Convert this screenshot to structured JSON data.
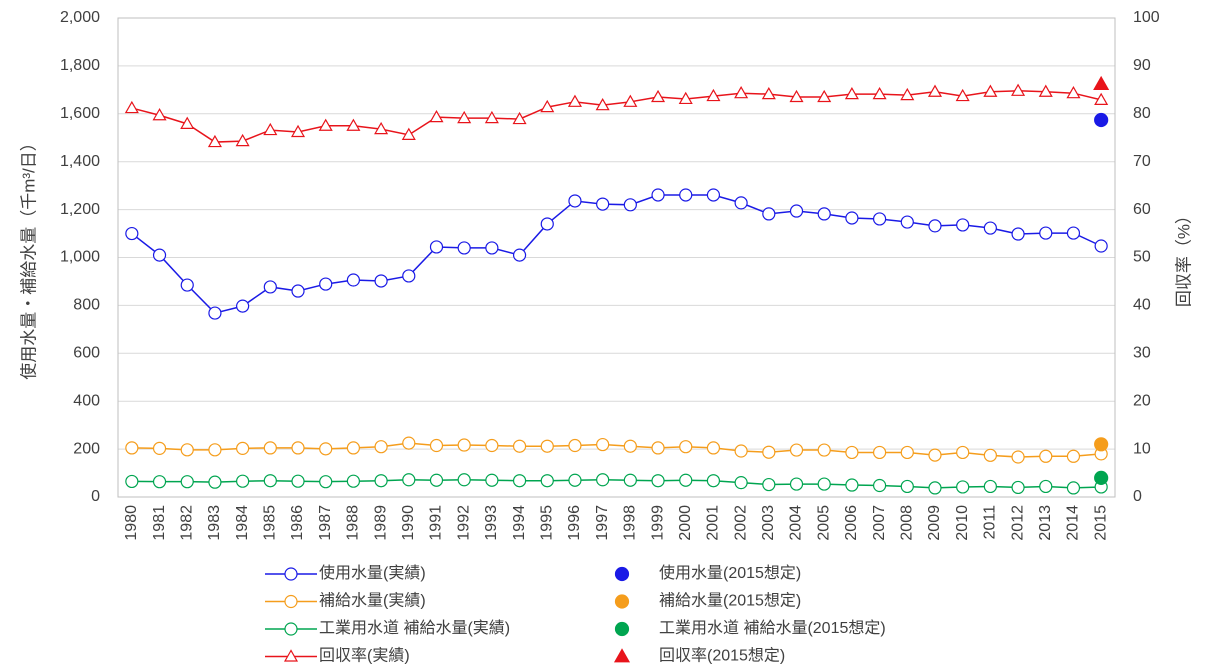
{
  "chart_data": {
    "type": "line",
    "y_label": "使用水量・補給水量（千m³/日）",
    "y2_label": "回収率（%）",
    "categories": [
      "1980",
      "1981",
      "1982",
      "1983",
      "1984",
      "1985",
      "1986",
      "1987",
      "1988",
      "1989",
      "1990",
      "1991",
      "1992",
      "1993",
      "1994",
      "1995",
      "1996",
      "1997",
      "1998",
      "1999",
      "2000",
      "2001",
      "2002",
      "2003",
      "2004",
      "2005",
      "2006",
      "2007",
      "2008",
      "2009",
      "2010",
      "2011",
      "2012",
      "2013",
      "2014",
      "2015"
    ],
    "ylim": [
      0,
      2000
    ],
    "yticks": [
      0,
      200,
      400,
      600,
      800,
      {
        "value": 1000,
        "label": "1,000"
      },
      {
        "value": 1200,
        "label": "1,200"
      },
      {
        "value": 1400,
        "label": "1,400"
      },
      {
        "value": 1600,
        "label": "1,600"
      },
      {
        "value": 1800,
        "label": "1,800"
      },
      {
        "value": 2000,
        "label": "2,000"
      }
    ],
    "y2lim": [
      0,
      100
    ],
    "y2ticks": [
      0,
      10,
      20,
      30,
      40,
      50,
      60,
      70,
      80,
      90,
      100
    ],
    "grid": true,
    "series": [
      {
        "name": "使用水量(実績)",
        "color": "#1a1ae6",
        "marker": "circle-open",
        "line": true,
        "axis": "y",
        "values": [
          1100,
          1010,
          885,
          768,
          797,
          877,
          860,
          889,
          906,
          902,
          923,
          1044,
          1040,
          1040,
          1010,
          1140,
          1236,
          1223,
          1220,
          1261,
          1261,
          1261,
          1228,
          1182,
          1194,
          1182,
          1165,
          1161,
          1148,
          1132,
          1136,
          1123,
          1098,
          1102,
          1102,
          1048
        ]
      },
      {
        "name": "使用水量(2015想定)",
        "color": "#1a1ae6",
        "marker": "circle",
        "line": false,
        "axis": "y",
        "values": [
          null,
          null,
          null,
          null,
          null,
          null,
          null,
          null,
          null,
          null,
          null,
          null,
          null,
          null,
          null,
          null,
          null,
          null,
          null,
          null,
          null,
          null,
          null,
          null,
          null,
          null,
          null,
          null,
          null,
          null,
          null,
          null,
          null,
          null,
          null,
          1574
        ]
      },
      {
        "name": "補給水量(実績)",
        "color": "#f59d1c",
        "marker": "circle-open",
        "line": true,
        "axis": "y",
        "values": [
          205,
          203,
          197,
          197,
          203,
          205,
          205,
          201,
          205,
          210,
          225,
          215,
          217,
          215,
          212,
          212,
          215,
          219,
          212,
          205,
          210,
          205,
          192,
          187,
          196,
          196,
          186,
          186,
          186,
          175,
          186,
          174,
          167,
          170,
          170,
          180
        ]
      },
      {
        "name": "補給水量(2015想定)",
        "color": "#f59d1c",
        "marker": "circle",
        "line": false,
        "axis": "y",
        "values": [
          null,
          null,
          null,
          null,
          null,
          null,
          null,
          null,
          null,
          null,
          null,
          null,
          null,
          null,
          null,
          null,
          null,
          null,
          null,
          null,
          null,
          null,
          null,
          null,
          null,
          null,
          null,
          null,
          null,
          null,
          null,
          null,
          null,
          null,
          null,
          220
        ]
      },
      {
        "name": "工業用水道 補給水量(実績)",
        "color": "#00a550",
        "marker": "circle-open",
        "line": true,
        "axis": "y",
        "values": [
          65,
          64,
          64,
          62,
          66,
          68,
          66,
          64,
          66,
          68,
          72,
          70,
          72,
          70,
          68,
          68,
          70,
          72,
          70,
          68,
          70,
          68,
          60,
          52,
          54,
          54,
          50,
          48,
          44,
          38,
          42,
          44,
          40,
          44,
          38,
          42
        ]
      },
      {
        "name": "工業用水道 補給水量(2015想定)",
        "color": "#00a550",
        "marker": "circle",
        "line": false,
        "axis": "y",
        "values": [
          null,
          null,
          null,
          null,
          null,
          null,
          null,
          null,
          null,
          null,
          null,
          null,
          null,
          null,
          null,
          null,
          null,
          null,
          null,
          null,
          null,
          null,
          null,
          null,
          null,
          null,
          null,
          null,
          null,
          null,
          null,
          null,
          null,
          null,
          null,
          80
        ]
      },
      {
        "name": "回収率(実績)",
        "color": "#e8141b",
        "marker": "triangle-open",
        "line": true,
        "axis": "y2",
        "values": [
          81.2,
          79.7,
          77.9,
          74.1,
          74.3,
          76.6,
          76.2,
          77.5,
          77.5,
          76.8,
          75.6,
          79.3,
          79.1,
          79.1,
          78.9,
          81.4,
          82.5,
          81.8,
          82.5,
          83.5,
          83.1,
          83.7,
          84.3,
          84.1,
          83.5,
          83.5,
          84.1,
          84.1,
          83.9,
          84.6,
          83.7,
          84.6,
          84.8,
          84.6,
          84.3,
          82.9
        ]
      },
      {
        "name": "回収率(2015想定)",
        "color": "#e8141b",
        "marker": "triangle",
        "line": false,
        "axis": "y2",
        "values": [
          null,
          null,
          null,
          null,
          null,
          null,
          null,
          null,
          null,
          null,
          null,
          null,
          null,
          null,
          null,
          null,
          null,
          null,
          null,
          null,
          null,
          null,
          null,
          null,
          null,
          null,
          null,
          null,
          null,
          null,
          null,
          null,
          null,
          null,
          null,
          86.2
        ]
      }
    ]
  }
}
